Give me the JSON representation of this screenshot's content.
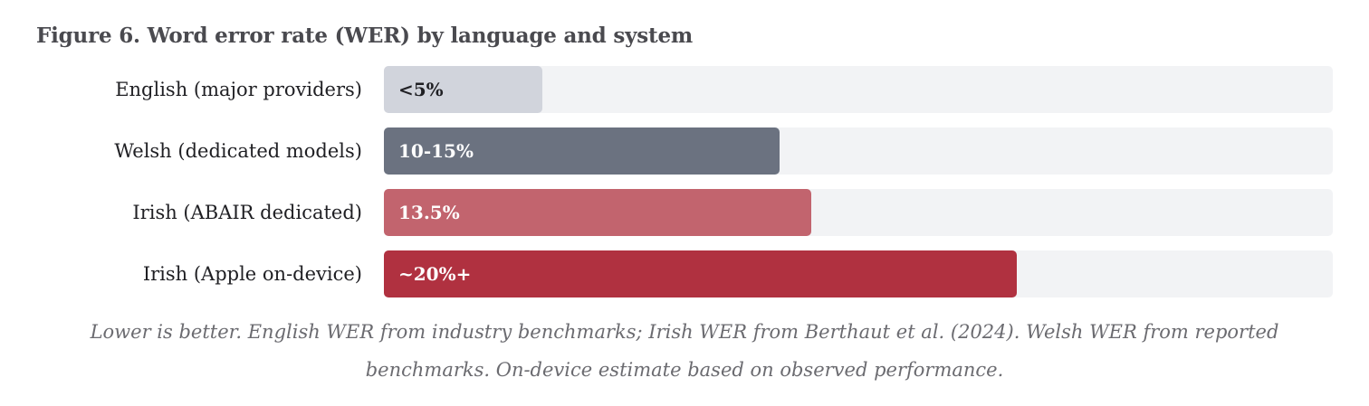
{
  "figure": {
    "title": "Figure 6. Word error rate (WER) by language and system",
    "caption": "Lower is better. English WER from industry benchmarks; Irish WER from Berthaut et al. (2024). Welsh WER from reported benchmarks. On-device estimate based on observed performance."
  },
  "chart_data": {
    "type": "bar",
    "orientation": "horizontal",
    "title": "Figure 6. Word error rate (WER) by language and system",
    "categories": [
      "English (major providers)",
      "Welsh (dedicated models)",
      "Irish (ABAIR dedicated)",
      "Irish (Apple on-device)"
    ],
    "value_labels": [
      "<5%",
      "10-15%",
      "13.5%",
      "~20%+"
    ],
    "values": [
      5,
      12.5,
      13.5,
      20
    ],
    "xlim": [
      0,
      30
    ],
    "grid": false,
    "legend": "none",
    "colors": [
      "#d1d4dc",
      "#6b7280",
      "#c2646e",
      "#b03140"
    ],
    "label_colors": [
      "#1f1f23",
      "#ffffff",
      "#ffffff",
      "#ffffff"
    ]
  }
}
